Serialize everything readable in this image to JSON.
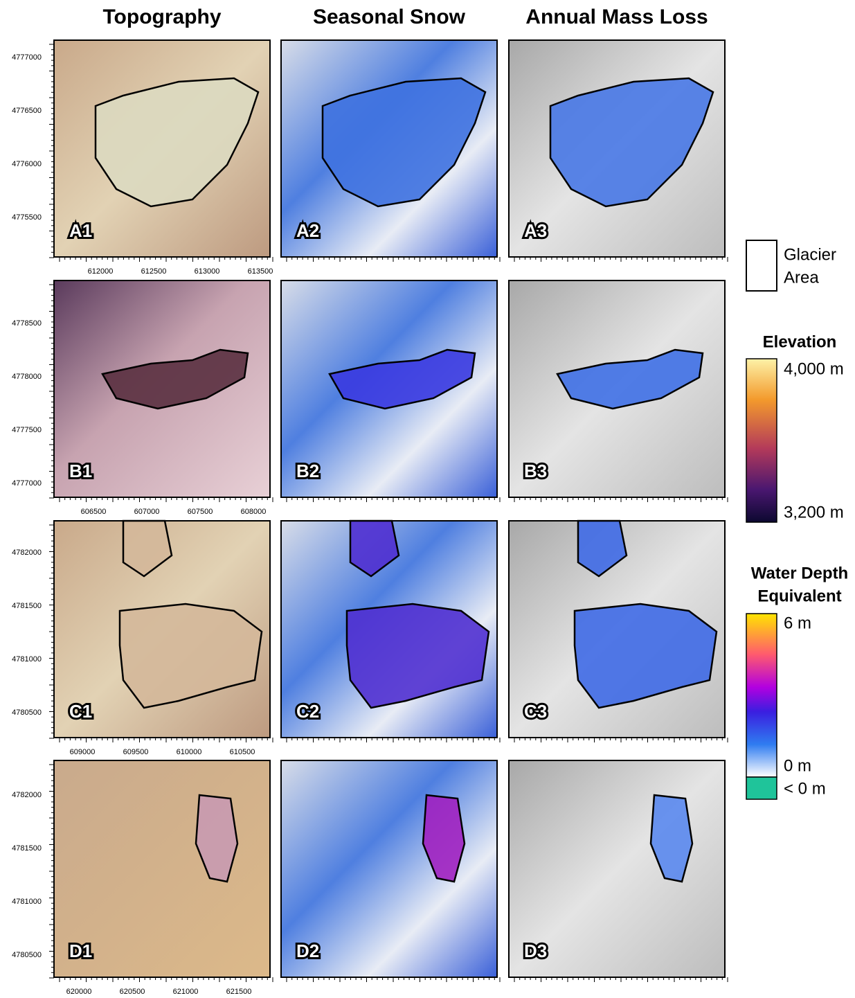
{
  "column_titles": [
    "Topography",
    "Seasonal Snow",
    "Annual Mass Loss"
  ],
  "rows": [
    {
      "panels": [
        "A1",
        "A2",
        "A3"
      ],
      "x_ticks": [
        612000,
        612500,
        613000,
        613500
      ],
      "y_ticks": [
        4777000,
        4776500,
        4776000,
        4775500
      ]
    },
    {
      "panels": [
        "B1",
        "B2",
        "B3"
      ],
      "x_ticks": [
        606500,
        607000,
        607500,
        608000
      ],
      "y_ticks": [
        4778500,
        4778000,
        4777500,
        4777000
      ]
    },
    {
      "panels": [
        "C1",
        "C2",
        "C3"
      ],
      "x_ticks": [
        609000,
        609500,
        610000,
        610500
      ],
      "y_ticks": [
        4782000,
        4781500,
        4781000,
        4780500
      ]
    },
    {
      "panels": [
        "D1",
        "D2",
        "D3"
      ],
      "x_ticks": [
        620000,
        620500,
        621000,
        621500
      ],
      "y_ticks": [
        4782000,
        4781500,
        4781000,
        4780500
      ]
    }
  ],
  "legend": {
    "glacier": [
      "Glacier",
      "Area"
    ],
    "elevation": {
      "title": "Elevation",
      "max": "4,000 m",
      "min": "3,200 m"
    },
    "water": {
      "title": [
        "Water Depth",
        "Equivalent"
      ],
      "max": "6 m",
      "zero": "0 m",
      "negative": "< 0 m"
    }
  }
}
